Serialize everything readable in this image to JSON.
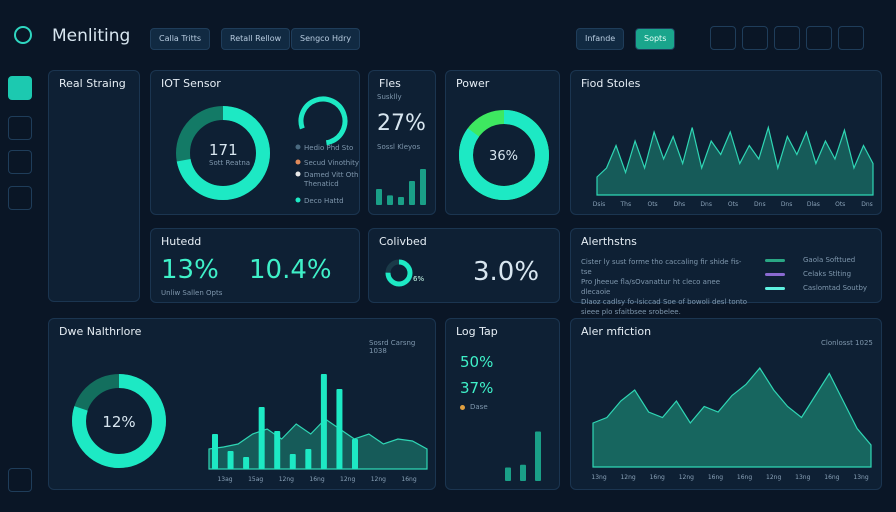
{
  "header": {
    "title": "Menliting",
    "tabs": [
      "Calla Tritts",
      "Retall Rellow",
      "Sengco Hdry"
    ],
    "search": "Infande",
    "button": "Sopts"
  },
  "panels": {
    "real": {
      "title": "Real Straing"
    },
    "iot": {
      "title": "IOT Sensor",
      "center": "171",
      "center_sub": "Sott Reatna",
      "ring": 72,
      "gauge": 78,
      "legend": [
        {
          "label": "Hedio Phd Sto",
          "color": "#4a6a80"
        },
        {
          "label": "Secud Vinothity",
          "color": "#e08a5a"
        },
        {
          "label": "Damed Vitt Oth",
          "color": "#e8e8e8"
        }
      ],
      "legend_note": "Thenaticd",
      "footer": "Deco Hattd"
    },
    "files": {
      "title": "Fles",
      "subtitle": "Susklly",
      "value": "27%",
      "note": "Sossl Kleyos",
      "bars": [
        20,
        12,
        10,
        30,
        45
      ]
    },
    "power": {
      "title": "Power",
      "center": "36%",
      "ring": 85
    },
    "fiod": {
      "title": "Fiod Stoles",
      "categories": [
        "Dsis",
        "Ths",
        "Ots",
        "Dhs",
        "Dns",
        "Ots",
        "Dns",
        "Dns",
        "Dlas",
        "Ots",
        "Dns"
      ],
      "values": [
        20,
        30,
        55,
        25,
        60,
        30,
        70,
        40,
        65,
        35,
        75,
        30,
        60,
        45,
        70,
        35,
        55,
        40,
        75,
        30,
        65,
        45,
        70,
        35,
        60,
        40,
        72,
        30,
        55,
        35
      ]
    },
    "hut": {
      "title": "Hutedd",
      "value1": "13%",
      "value2": "10.4%",
      "note": "Unliw Sallen Opts"
    },
    "col": {
      "title": "Colivbed",
      "ring": 75,
      "ring_label": "6%",
      "value": "3.0%"
    },
    "alert": {
      "title": "Alerthstns",
      "lines": [
        "Cister ly sust forme tho caccaling fir shide fis-tse",
        "Pro Jheeue fla/sOvanattur ht cleco anee dlecaoie",
        "Dlaoz cadlsy fo-lsiccad Soe of bowoli desl tonto",
        "sieee plo sfaitbsee srobelee."
      ],
      "legend": [
        {
          "label": "Gaola Softtued",
          "color": "#2aa784"
        },
        {
          "label": "Celaks Stlting",
          "color": "#8a6ad0"
        },
        {
          "label": "Caslomtad Soutby",
          "color": "#5ef0e0"
        }
      ]
    },
    "dwe": {
      "title": "Dwe Nalthrlore",
      "note": "Sosrd Carsng 1038",
      "center": "12%",
      "ring": 80,
      "categories": [
        "13ag",
        "15ag",
        "12ng",
        "16ng",
        "12ng",
        "12ng",
        "16ng"
      ],
      "area": [
        20,
        22,
        25,
        35,
        40,
        30,
        45,
        35,
        50,
        40,
        30,
        35,
        25,
        30,
        28,
        20
      ],
      "bars": [
        35,
        18,
        12,
        62,
        38,
        15,
        20,
        95,
        80,
        30
      ]
    },
    "log": {
      "title": "Log Tap",
      "value1": "50%",
      "value2": "37%",
      "legend": "Dase",
      "bars": [
        15,
        18,
        55
      ]
    },
    "aler": {
      "title": "Aler mfiction",
      "note": "Clonlosst 1025",
      "categories": [
        "13ng",
        "12ng",
        "16ng",
        "12ng",
        "16ng",
        "16ng",
        "12ng",
        "13ng",
        "16ng",
        "13ng"
      ],
      "values": [
        40,
        45,
        60,
        70,
        50,
        45,
        60,
        40,
        55,
        50,
        65,
        75,
        90,
        70,
        55,
        45,
        65,
        85,
        60,
        35,
        20
      ]
    }
  }
}
